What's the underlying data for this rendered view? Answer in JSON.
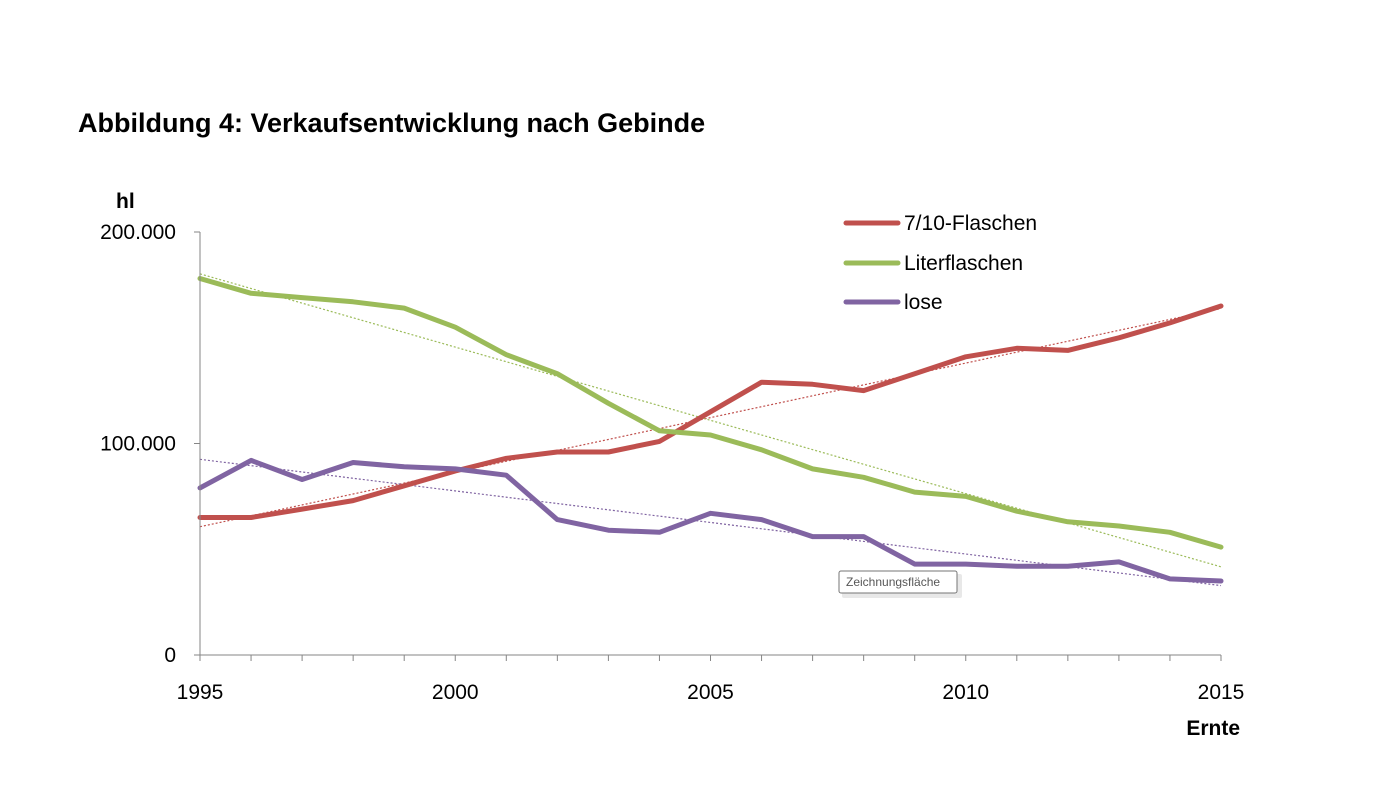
{
  "title": "Abbildung 4: Verkaufsentwicklung nach Gebinde",
  "tooltip": "Zeichnungsfläche",
  "chart_data": {
    "type": "line",
    "title": "Abbildung 4: Verkaufsentwicklung nach Gebinde",
    "xlabel": "Ernte",
    "ylabel": "hl",
    "ylim": [
      0,
      200000
    ],
    "xlim": [
      1995,
      2015
    ],
    "x": [
      1995,
      1996,
      1997,
      1998,
      1999,
      2000,
      2001,
      2002,
      2003,
      2004,
      2005,
      2006,
      2007,
      2008,
      2009,
      2010,
      2011,
      2012,
      2013,
      2014,
      2015
    ],
    "x_ticks": [
      1995,
      2000,
      2005,
      2010,
      2015
    ],
    "x_tick_labels": [
      "1995",
      "2000",
      "2005",
      "2010",
      "2015"
    ],
    "y_ticks": [
      0,
      100000,
      200000
    ],
    "y_tick_labels": [
      "0",
      "100.000",
      "200.000"
    ],
    "legend_position": "top-right",
    "trendlines": "linear, dotted",
    "series": [
      {
        "name": "7/10-Flaschen",
        "color": "#c0504d",
        "values": [
          65000,
          65000,
          69000,
          73000,
          80000,
          87000,
          93000,
          96000,
          96000,
          101000,
          115000,
          129000,
          128000,
          125000,
          133000,
          141000,
          145000,
          144000,
          150000,
          157000,
          165000
        ]
      },
      {
        "name": "Literflaschen",
        "color": "#9bbb59",
        "values": [
          178000,
          171000,
          169000,
          167000,
          164000,
          155000,
          142000,
          133000,
          119000,
          106000,
          104000,
          97000,
          88000,
          84000,
          77000,
          75000,
          68000,
          63000,
          61000,
          58000,
          51000
        ]
      },
      {
        "name": "lose",
        "color": "#8064a2",
        "values": [
          79000,
          92000,
          83000,
          91000,
          89000,
          88000,
          85000,
          64000,
          59000,
          58000,
          67000,
          64000,
          56000,
          56000,
          43000,
          43000,
          42000,
          42000,
          44000,
          36000,
          35000
        ]
      }
    ]
  }
}
